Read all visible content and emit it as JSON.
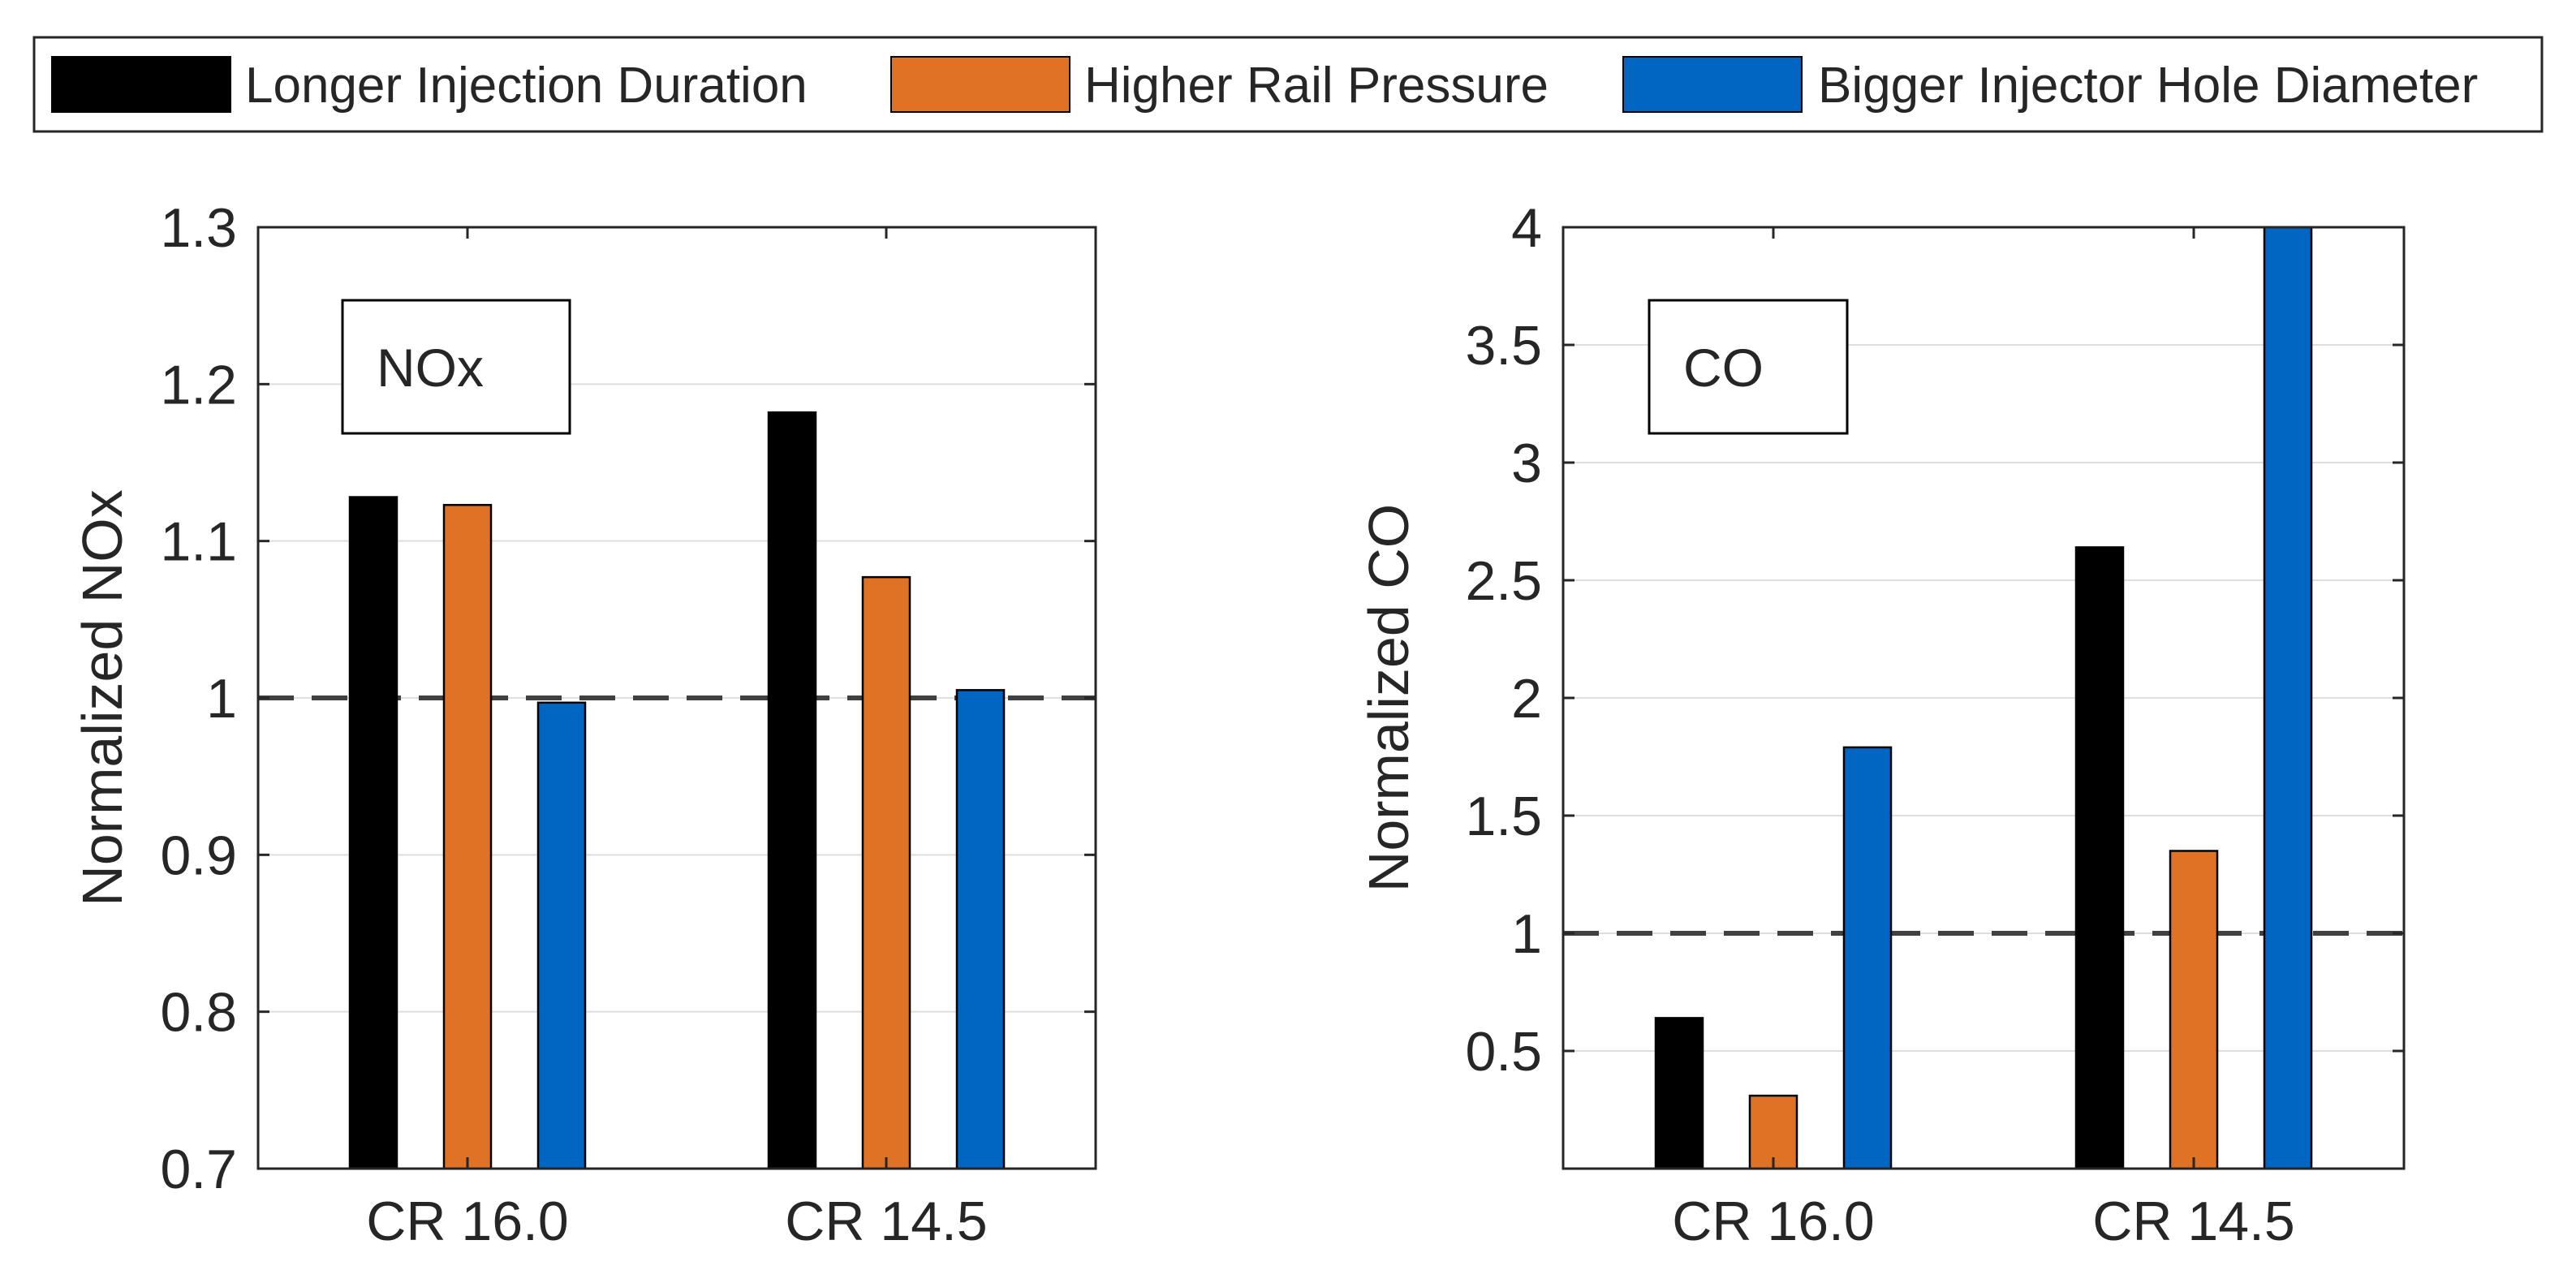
{
  "legend": [
    {
      "label": "Longer Injection Duration",
      "color": "#000000"
    },
    {
      "label": "Higher Rail Pressure",
      "color": "#E07226"
    },
    {
      "label": "Bigger Injector Hole Diameter",
      "color": "#0066C2"
    }
  ],
  "chart_data": [
    {
      "type": "bar",
      "title": "NOx",
      "annotation": "NOx",
      "ylabel": "Normalized NOx",
      "xlabel": "",
      "categories": [
        "CR 16.0",
        "CR 14.5"
      ],
      "ylim": [
        0.7,
        1.3
      ],
      "yticks": [
        0.7,
        0.8,
        0.9,
        1.0,
        1.1,
        1.2,
        1.3
      ],
      "ytick_labels": [
        "0.7",
        "0.8",
        "0.9",
        "1",
        "1.1",
        "1.2",
        "1.3"
      ],
      "reference_line": 1.0,
      "grid": true,
      "series": [
        {
          "name": "Longer Injection Duration",
          "values": [
            1.128,
            1.182
          ]
        },
        {
          "name": "Higher Rail Pressure",
          "values": [
            1.123,
            1.077
          ]
        },
        {
          "name": "Bigger Injector Hole Diameter",
          "values": [
            0.997,
            1.005
          ]
        }
      ]
    },
    {
      "type": "bar",
      "title": "CO",
      "annotation": "CO",
      "ylabel": "Normalized CO",
      "xlabel": "",
      "categories": [
        "CR 16.0",
        "CR 14.5"
      ],
      "ylim": [
        0,
        4
      ],
      "yticks": [
        0.5,
        1,
        1.5,
        2,
        2.5,
        3,
        3.5,
        4
      ],
      "ytick_labels": [
        "0.5",
        "1",
        "1.5",
        "2",
        "2.5",
        "3",
        "3.5",
        "4"
      ],
      "reference_line": 1.0,
      "grid": true,
      "series": [
        {
          "name": "Longer Injection Duration",
          "values": [
            0.64,
            2.64
          ]
        },
        {
          "name": "Higher Rail Pressure",
          "values": [
            0.31,
            1.35
          ]
        },
        {
          "name": "Bigger Injector Hole Diameter",
          "values": [
            1.79,
            4.0
          ]
        }
      ]
    }
  ]
}
